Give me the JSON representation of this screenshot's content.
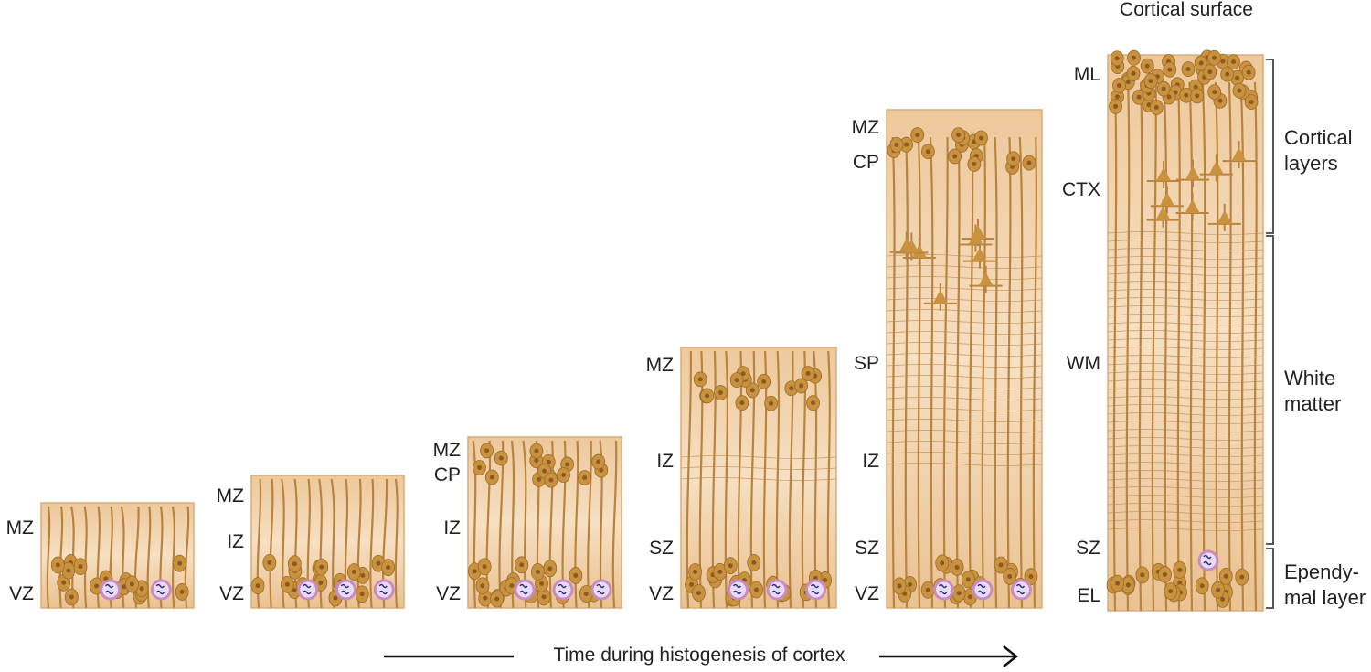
{
  "title_surface": "Cortical surface",
  "panels": [
    {
      "labels": [
        "MZ",
        "VZ"
      ]
    },
    {
      "labels": [
        "MZ",
        "IZ",
        "VZ"
      ]
    },
    {
      "labels": [
        "MZ",
        "CP",
        "IZ",
        "VZ"
      ]
    },
    {
      "labels": [
        "MZ",
        "IZ",
        "SZ",
        "VZ"
      ]
    },
    {
      "labels": [
        "MZ",
        "CP",
        "SP",
        "IZ",
        "SZ",
        "VZ"
      ]
    },
    {
      "labels": [
        "ML",
        "CTX",
        "WM",
        "SZ",
        "EL"
      ]
    }
  ],
  "brackets": [
    "Cortical layers",
    "White matter",
    "Ependy-mal layer"
  ],
  "bracket_lines": [
    [
      "Cortical",
      "layers"
    ],
    [
      "White",
      "matter"
    ],
    [
      "Ependy-",
      "mal layer"
    ]
  ],
  "caption": "Time during histogenesis of cortex",
  "colors": {
    "tissue": "#f1d3ac",
    "cell": "#c9923f",
    "fiber": "#b8843e",
    "mitotic": "#c98bc0"
  }
}
